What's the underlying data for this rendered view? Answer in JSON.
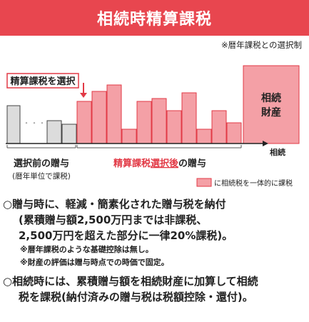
{
  "title": "相続時精算課税",
  "note_top": "※暦年課税との選択制",
  "diagram": {
    "choose_label": "精算課税を選択",
    "inheritance_label_line1": "相続",
    "inheritance_label_line2": "財産",
    "axis_end_label": "相続",
    "left_group_label_line1": "選択前の贈与",
    "left_group_label_line2": "(暦年単位で課税)",
    "right_group_label_prefix": "精算課税",
    "right_group_label_underlined": "選択後",
    "right_group_label_suffix": "の贈与",
    "legend_label": "に相続税を一体的に課税",
    "dots": "・・・",
    "colors": {
      "pink_fill": "#f4a0a6",
      "pink_stroke": "#e23a46",
      "gray_fill": "#dcdcdc",
      "accent": "#e8464f"
    }
  },
  "bullets": [
    {
      "marker": "○",
      "lines": [
        "贈与時に、軽減・簡素化された贈与税を納付",
        "(累積贈与額2,500万円までは非課税、",
        "2,500万円を超えた部分に一律20%課税)。"
      ],
      "notes": [
        "※暦年課税のような基礎控除は無し。",
        "※財産の評価は贈与時点での時価で固定。"
      ]
    },
    {
      "marker": "○",
      "lines": [
        "相続時には、累積贈与額を相続財産に加算して相続",
        "税を課税(納付済みの贈与税は税額控除・還付)。"
      ],
      "notes": []
    }
  ]
}
